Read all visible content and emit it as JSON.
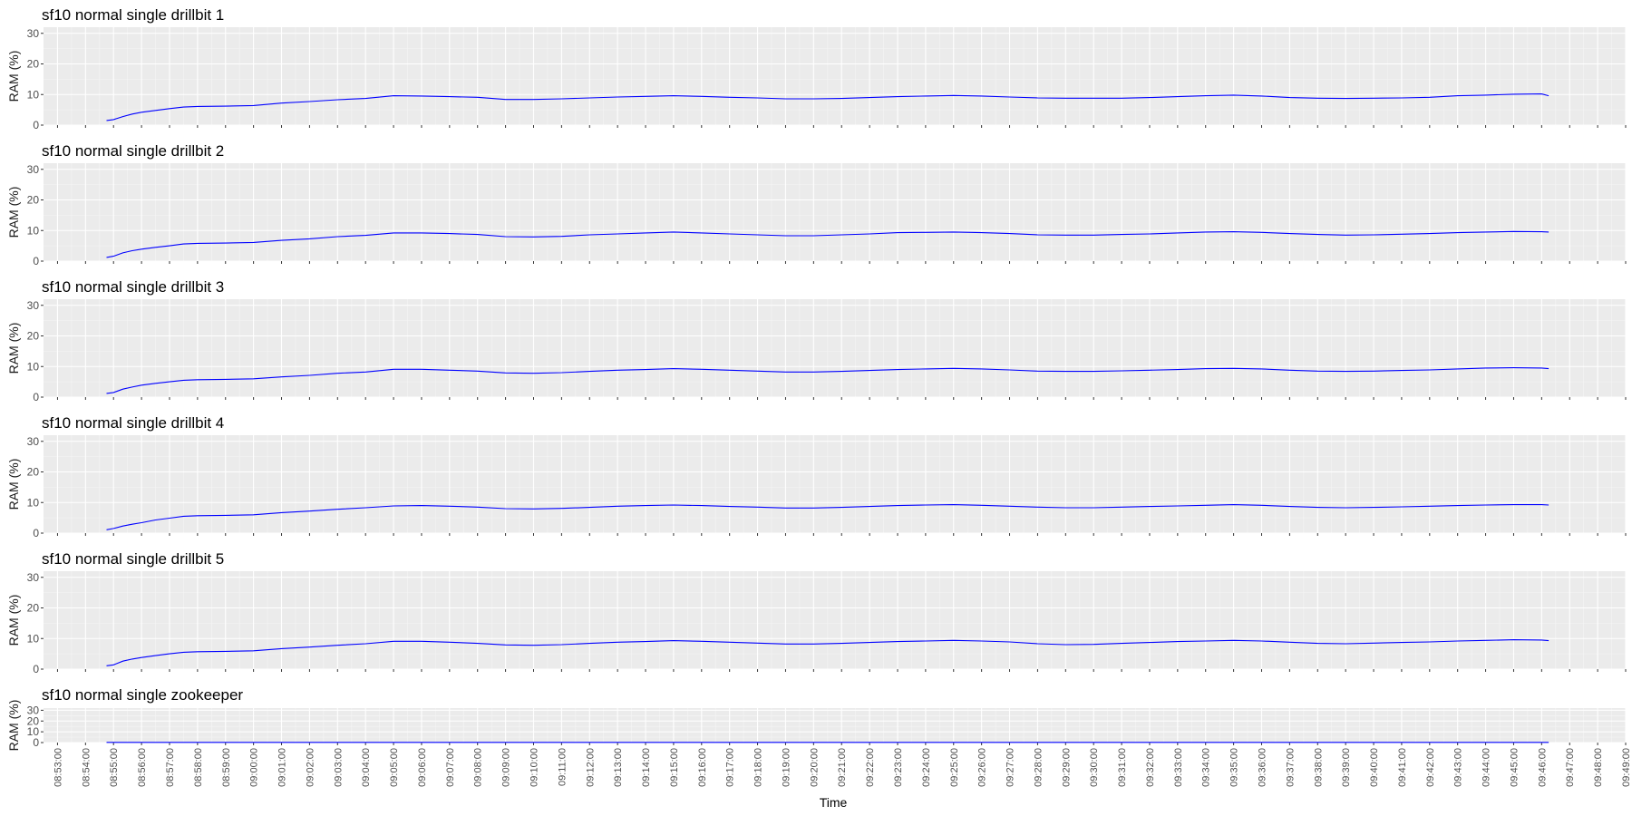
{
  "colors": {
    "panel_bg": "#ebebeb",
    "grid_major": "#ffffff",
    "line": "#0000ff",
    "tick": "#333333"
  },
  "chart_data": {
    "type": "line",
    "xlabel": "Time",
    "ylabel": "RAM (%)",
    "ylim": [
      0,
      32
    ],
    "yticks": [
      0,
      10,
      20,
      30
    ],
    "x_range": [
      "08:52:30",
      "09:49:00"
    ],
    "xticks": [
      "08:53:00",
      "08:54:00",
      "08:55:00",
      "08:56:00",
      "08:57:00",
      "08:58:00",
      "08:59:00",
      "09:00:00",
      "09:01:00",
      "09:02:00",
      "09:03:00",
      "09:04:00",
      "09:05:00",
      "09:06:00",
      "09:07:00",
      "09:08:00",
      "09:09:00",
      "09:10:00",
      "09:11:00",
      "09:12:00",
      "09:13:00",
      "09:14:00",
      "09:15:00",
      "09:16:00",
      "09:17:00",
      "09:18:00",
      "09:19:00",
      "09:20:00",
      "09:21:00",
      "09:22:00",
      "09:23:00",
      "09:24:00",
      "09:25:00",
      "09:26:00",
      "09:27:00",
      "09:28:00",
      "09:29:00",
      "09:30:00",
      "09:31:00",
      "09:32:00",
      "09:33:00",
      "09:34:00",
      "09:35:00",
      "09:36:00",
      "09:37:00",
      "09:38:00",
      "09:39:00",
      "09:40:00",
      "09:41:00",
      "09:42:00",
      "09:43:00",
      "09:44:00",
      "09:45:00",
      "09:46:00",
      "09:47:00",
      "09:48:00",
      "09:49:00"
    ],
    "grid": true,
    "legend": "none",
    "panels": [
      {
        "title": "sf10 normal single drillbit 1",
        "x": [
          "08:54:45",
          "08:55:00",
          "08:55:20",
          "08:55:40",
          "08:56:00",
          "08:56:30",
          "08:57:00",
          "08:57:30",
          "08:58:00",
          "08:59:00",
          "09:00:00",
          "09:01:00",
          "09:02:00",
          "09:03:00",
          "09:04:00",
          "09:05:00",
          "09:06:00",
          "09:07:00",
          "09:08:00",
          "09:09:00",
          "09:10:00",
          "09:11:00",
          "09:12:00",
          "09:13:00",
          "09:14:00",
          "09:15:00",
          "09:16:00",
          "09:17:00",
          "09:18:00",
          "09:19:00",
          "09:20:00",
          "09:21:00",
          "09:22:00",
          "09:23:00",
          "09:24:00",
          "09:25:00",
          "09:26:00",
          "09:27:00",
          "09:28:00",
          "09:29:00",
          "09:30:00",
          "09:31:00",
          "09:32:00",
          "09:33:00",
          "09:34:00",
          "09:35:00",
          "09:36:00",
          "09:37:00",
          "09:38:00",
          "09:39:00",
          "09:40:00",
          "09:41:00",
          "09:42:00",
          "09:43:00",
          "09:44:00",
          "09:45:00",
          "09:46:00",
          "09:46:15"
        ],
        "y": [
          1.5,
          1.8,
          2.8,
          3.6,
          4.2,
          4.8,
          5.4,
          5.9,
          6.1,
          6.2,
          6.4,
          7.2,
          7.7,
          8.3,
          8.7,
          9.6,
          9.5,
          9.3,
          9.1,
          8.4,
          8.4,
          8.6,
          8.9,
          9.2,
          9.4,
          9.6,
          9.4,
          9.1,
          8.9,
          8.6,
          8.6,
          8.7,
          9.0,
          9.3,
          9.5,
          9.7,
          9.5,
          9.2,
          8.9,
          8.8,
          8.8,
          8.8,
          9.0,
          9.3,
          9.6,
          9.8,
          9.5,
          9.0,
          8.8,
          8.7,
          8.8,
          8.9,
          9.1,
          9.6,
          9.8,
          10.1,
          10.2,
          9.6
        ]
      },
      {
        "title": "sf10 normal single drillbit 2",
        "x": [
          "08:54:45",
          "08:55:00",
          "08:55:20",
          "08:55:40",
          "08:56:00",
          "08:56:30",
          "08:57:00",
          "08:57:30",
          "08:58:00",
          "08:59:00",
          "09:00:00",
          "09:01:00",
          "09:02:00",
          "09:03:00",
          "09:04:00",
          "09:05:00",
          "09:06:00",
          "09:07:00",
          "09:08:00",
          "09:09:00",
          "09:10:00",
          "09:11:00",
          "09:12:00",
          "09:13:00",
          "09:14:00",
          "09:15:00",
          "09:16:00",
          "09:17:00",
          "09:18:00",
          "09:19:00",
          "09:20:00",
          "09:21:00",
          "09:22:00",
          "09:23:00",
          "09:24:00",
          "09:25:00",
          "09:26:00",
          "09:27:00",
          "09:28:00",
          "09:29:00",
          "09:30:00",
          "09:31:00",
          "09:32:00",
          "09:33:00",
          "09:34:00",
          "09:35:00",
          "09:36:00",
          "09:37:00",
          "09:38:00",
          "09:39:00",
          "09:40:00",
          "09:41:00",
          "09:42:00",
          "09:43:00",
          "09:44:00",
          "09:45:00",
          "09:46:00",
          "09:46:15"
        ],
        "y": [
          1.2,
          1.6,
          2.7,
          3.4,
          3.9,
          4.5,
          5.0,
          5.6,
          5.8,
          5.9,
          6.1,
          6.8,
          7.3,
          8.0,
          8.4,
          9.2,
          9.2,
          9.0,
          8.7,
          8.0,
          7.9,
          8.1,
          8.6,
          8.9,
          9.2,
          9.5,
          9.2,
          8.9,
          8.6,
          8.3,
          8.3,
          8.6,
          8.9,
          9.3,
          9.4,
          9.5,
          9.3,
          9.0,
          8.6,
          8.5,
          8.5,
          8.7,
          8.9,
          9.2,
          9.5,
          9.6,
          9.4,
          9.0,
          8.7,
          8.5,
          8.6,
          8.8,
          9.0,
          9.3,
          9.5,
          9.7,
          9.6,
          9.5
        ]
      },
      {
        "title": "sf10 normal single drillbit 3",
        "x": [
          "08:54:45",
          "08:55:00",
          "08:55:20",
          "08:55:40",
          "08:56:00",
          "08:56:30",
          "08:57:00",
          "08:57:30",
          "08:58:00",
          "08:59:00",
          "09:00:00",
          "09:01:00",
          "09:02:00",
          "09:03:00",
          "09:04:00",
          "09:05:00",
          "09:06:00",
          "09:07:00",
          "09:08:00",
          "09:09:00",
          "09:10:00",
          "09:11:00",
          "09:12:00",
          "09:13:00",
          "09:14:00",
          "09:15:00",
          "09:16:00",
          "09:17:00",
          "09:18:00",
          "09:19:00",
          "09:20:00",
          "09:21:00",
          "09:22:00",
          "09:23:00",
          "09:24:00",
          "09:25:00",
          "09:26:00",
          "09:27:00",
          "09:28:00",
          "09:29:00",
          "09:30:00",
          "09:31:00",
          "09:32:00",
          "09:33:00",
          "09:34:00",
          "09:35:00",
          "09:36:00",
          "09:37:00",
          "09:38:00",
          "09:39:00",
          "09:40:00",
          "09:41:00",
          "09:42:00",
          "09:43:00",
          "09:44:00",
          "09:45:00",
          "09:46:00",
          "09:46:15"
        ],
        "y": [
          1.2,
          1.5,
          2.6,
          3.3,
          3.9,
          4.5,
          5.0,
          5.5,
          5.7,
          5.8,
          6.0,
          6.6,
          7.1,
          7.8,
          8.2,
          9.1,
          9.1,
          8.8,
          8.5,
          7.9,
          7.8,
          8.0,
          8.4,
          8.8,
          9.0,
          9.3,
          9.1,
          8.8,
          8.5,
          8.2,
          8.2,
          8.4,
          8.7,
          9.0,
          9.2,
          9.4,
          9.2,
          8.9,
          8.5,
          8.4,
          8.4,
          8.6,
          8.8,
          9.0,
          9.3,
          9.4,
          9.2,
          8.8,
          8.5,
          8.4,
          8.5,
          8.7,
          8.9,
          9.2,
          9.5,
          9.6,
          9.5,
          9.3
        ]
      },
      {
        "title": "sf10 normal single drillbit 4",
        "x": [
          "08:54:45",
          "08:55:00",
          "08:55:20",
          "08:55:40",
          "08:56:00",
          "08:56:30",
          "08:57:00",
          "08:57:30",
          "08:58:00",
          "08:59:00",
          "09:00:00",
          "09:01:00",
          "09:02:00",
          "09:03:00",
          "09:04:00",
          "09:05:00",
          "09:06:00",
          "09:07:00",
          "09:08:00",
          "09:09:00",
          "09:10:00",
          "09:11:00",
          "09:12:00",
          "09:13:00",
          "09:14:00",
          "09:15:00",
          "09:16:00",
          "09:17:00",
          "09:18:00",
          "09:19:00",
          "09:20:00",
          "09:21:00",
          "09:22:00",
          "09:23:00",
          "09:24:00",
          "09:25:00",
          "09:26:00",
          "09:27:00",
          "09:28:00",
          "09:29:00",
          "09:30:00",
          "09:31:00",
          "09:32:00",
          "09:33:00",
          "09:34:00",
          "09:35:00",
          "09:36:00",
          "09:37:00",
          "09:38:00",
          "09:39:00",
          "09:40:00",
          "09:41:00",
          "09:42:00",
          "09:43:00",
          "09:44:00",
          "09:45:00",
          "09:46:00",
          "09:46:15"
        ],
        "y": [
          1.1,
          1.5,
          2.3,
          2.9,
          3.4,
          4.3,
          4.9,
          5.5,
          5.7,
          5.8,
          6.0,
          6.7,
          7.2,
          7.8,
          8.3,
          8.9,
          9.0,
          8.8,
          8.5,
          8.0,
          7.9,
          8.1,
          8.4,
          8.8,
          9.0,
          9.2,
          9.0,
          8.7,
          8.5,
          8.2,
          8.2,
          8.4,
          8.7,
          9.0,
          9.2,
          9.3,
          9.1,
          8.8,
          8.5,
          8.3,
          8.3,
          8.5,
          8.7,
          8.9,
          9.1,
          9.3,
          9.1,
          8.7,
          8.4,
          8.3,
          8.4,
          8.6,
          8.8,
          9.0,
          9.2,
          9.3,
          9.3,
          9.2
        ]
      },
      {
        "title": "sf10 normal single drillbit 5",
        "x": [
          "08:54:45",
          "08:55:00",
          "08:55:20",
          "08:55:40",
          "08:56:00",
          "08:56:30",
          "08:57:00",
          "08:57:30",
          "08:58:00",
          "08:59:00",
          "09:00:00",
          "09:01:00",
          "09:02:00",
          "09:03:00",
          "09:04:00",
          "09:05:00",
          "09:06:00",
          "09:07:00",
          "09:08:00",
          "09:09:00",
          "09:10:00",
          "09:11:00",
          "09:12:00",
          "09:13:00",
          "09:14:00",
          "09:15:00",
          "09:16:00",
          "09:17:00",
          "09:18:00",
          "09:19:00",
          "09:20:00",
          "09:21:00",
          "09:22:00",
          "09:23:00",
          "09:24:00",
          "09:25:00",
          "09:26:00",
          "09:27:00",
          "09:28:00",
          "09:29:00",
          "09:30:00",
          "09:31:00",
          "09:32:00",
          "09:33:00",
          "09:34:00",
          "09:35:00",
          "09:36:00",
          "09:37:00",
          "09:38:00",
          "09:39:00",
          "09:40:00",
          "09:41:00",
          "09:42:00",
          "09:43:00",
          "09:44:00",
          "09:45:00",
          "09:46:00",
          "09:46:15"
        ],
        "y": [
          1.1,
          1.4,
          2.6,
          3.3,
          3.8,
          4.4,
          5.0,
          5.5,
          5.7,
          5.8,
          6.0,
          6.7,
          7.2,
          7.8,
          8.3,
          9.1,
          9.1,
          8.8,
          8.4,
          7.9,
          7.8,
          8.0,
          8.4,
          8.8,
          9.0,
          9.3,
          9.1,
          8.8,
          8.5,
          8.2,
          8.2,
          8.4,
          8.7,
          9.0,
          9.2,
          9.4,
          9.2,
          8.9,
          8.3,
          8.0,
          8.1,
          8.4,
          8.7,
          9.0,
          9.2,
          9.4,
          9.2,
          8.8,
          8.4,
          8.3,
          8.5,
          8.7,
          8.9,
          9.2,
          9.4,
          9.6,
          9.5,
          9.3
        ]
      },
      {
        "title": "sf10 normal single zookeeper",
        "x": [
          "08:54:45",
          "09:46:15"
        ],
        "y": [
          0.2,
          0.2
        ]
      }
    ]
  }
}
